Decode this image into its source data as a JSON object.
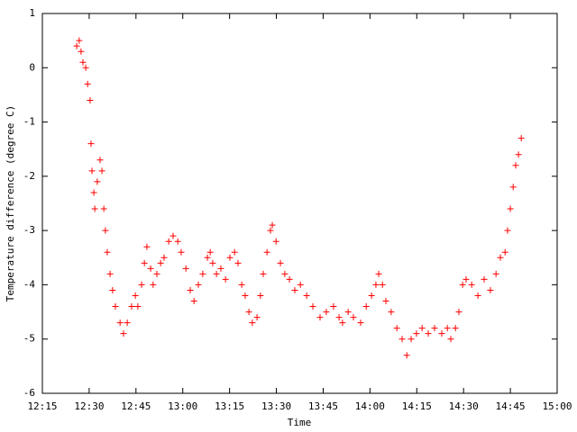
{
  "chart_data": {
    "type": "scatter",
    "xlabel": "Time",
    "ylabel": "Temperature difference (degree C)",
    "color": "#ff0000",
    "x": [
      746.0,
      746.8,
      747.4,
      748.0,
      748.9,
      749.5,
      750.3,
      750.6,
      750.9,
      751.5,
      751.8,
      752.6,
      753.5,
      754.1,
      754.7,
      755.2,
      755.8,
      756.7,
      757.5,
      758.4,
      759.9,
      761.0,
      762.2,
      763.6,
      764.8,
      765.6,
      766.8,
      767.7,
      768.5,
      769.7,
      770.5,
      771.7,
      772.9,
      774.0,
      775.5,
      776.9,
      778.4,
      779.5,
      781.0,
      782.4,
      783.6,
      785.0,
      786.4,
      787.9,
      788.8,
      789.6,
      790.8,
      792.2,
      793.7,
      795.1,
      796.6,
      797.7,
      798.9,
      800.0,
      801.2,
      802.3,
      803.8,
      804.9,
      805.8,
      807.0,
      808.1,
      808.7,
      809.9,
      811.3,
      812.7,
      814.2,
      815.9,
      817.7,
      819.7,
      821.7,
      824.0,
      826.0,
      828.3,
      830.1,
      831.2,
      833.0,
      834.7,
      837.0,
      838.8,
      840.5,
      841.9,
      842.8,
      844.0,
      845.1,
      846.8,
      848.6,
      850.3,
      851.8,
      853.2,
      854.9,
      856.7,
      858.7,
      860.7,
      863.0,
      864.8,
      865.9,
      867.4,
      868.5,
      869.7,
      870.8,
      872.6,
      874.6,
      876.6,
      878.6,
      880.4,
      881.8,
      883.3,
      884.1,
      885.0,
      885.9,
      886.7,
      887.6,
      888.5
    ],
    "values": [
      0.4,
      0.5,
      0.3,
      0.1,
      0.0,
      -0.3,
      -0.6,
      -1.4,
      -1.9,
      -2.3,
      -2.6,
      -2.1,
      -1.7,
      -1.9,
      -2.6,
      -3.0,
      -3.4,
      -3.8,
      -4.1,
      -4.4,
      -4.7,
      -4.9,
      -4.7,
      -4.4,
      -4.2,
      -4.4,
      -4.0,
      -3.6,
      -3.3,
      -3.7,
      -4.0,
      -3.8,
      -3.6,
      -3.5,
      -3.2,
      -3.1,
      -3.2,
      -3.4,
      -3.7,
      -4.1,
      -4.3,
      -4.0,
      -3.8,
      -3.5,
      -3.4,
      -3.6,
      -3.8,
      -3.7,
      -3.9,
      -3.5,
      -3.4,
      -3.6,
      -4.0,
      -4.2,
      -4.5,
      -4.7,
      -4.6,
      -4.2,
      -3.8,
      -3.4,
      -3.0,
      -2.9,
      -3.2,
      -3.6,
      -3.8,
      -3.9,
      -4.1,
      -4.0,
      -4.2,
      -4.4,
      -4.6,
      -4.5,
      -4.4,
      -4.6,
      -4.7,
      -4.5,
      -4.6,
      -4.7,
      -4.4,
      -4.2,
      -4.0,
      -3.8,
      -4.0,
      -4.3,
      -4.5,
      -4.8,
      -5.0,
      -5.3,
      -5.0,
      -4.9,
      -4.8,
      -4.9,
      -4.8,
      -4.9,
      -4.8,
      -5.0,
      -4.8,
      -4.5,
      -4.0,
      -3.9,
      -4.0,
      -4.2,
      -3.9,
      -4.1,
      -3.8,
      -3.5,
      -3.4,
      -3.0,
      -2.6,
      -2.2,
      -1.8,
      -1.6,
      -1.3
    ],
    "xlim": [
      735,
      900
    ],
    "xticks": [
      {
        "value": 735,
        "label": "12:15"
      },
      {
        "value": 750,
        "label": "12:30"
      },
      {
        "value": 765,
        "label": "12:45"
      },
      {
        "value": 780,
        "label": "13:00"
      },
      {
        "value": 795,
        "label": "13:15"
      },
      {
        "value": 810,
        "label": "13:30"
      },
      {
        "value": 825,
        "label": "13:45"
      },
      {
        "value": 840,
        "label": "14:00"
      },
      {
        "value": 855,
        "label": "14:15"
      },
      {
        "value": 870,
        "label": "14:30"
      },
      {
        "value": 885,
        "label": "14:45"
      },
      {
        "value": 900,
        "label": "15:00"
      }
    ],
    "ylim": [
      -6,
      1
    ],
    "yticks": [
      -6,
      -5,
      -4,
      -3,
      -2,
      -1,
      0,
      1
    ]
  }
}
